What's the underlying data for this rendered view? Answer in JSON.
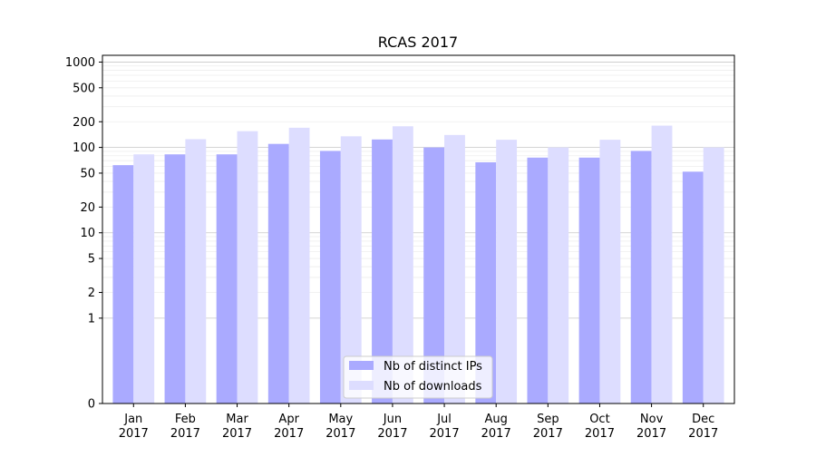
{
  "chart_data": {
    "type": "bar",
    "title": "RCAS 2017",
    "xlabel": "",
    "ylabel": "",
    "y_scale": "symlog",
    "ylim": [
      0,
      1200
    ],
    "y_ticks": [
      0,
      1,
      2,
      5,
      10,
      20,
      50,
      100,
      200,
      500,
      1000
    ],
    "y_tick_labels": [
      "0",
      "1",
      "2",
      "5",
      "10",
      "20",
      "50",
      "100",
      "200",
      "500",
      "1000"
    ],
    "y_major_grid": [
      1,
      10,
      100,
      1000
    ],
    "categories": [
      [
        "Jan",
        "2017"
      ],
      [
        "Feb",
        "2017"
      ],
      [
        "Mar",
        "2017"
      ],
      [
        "Apr",
        "2017"
      ],
      [
        "May",
        "2017"
      ],
      [
        "Jun",
        "2017"
      ],
      [
        "Jul",
        "2017"
      ],
      [
        "Aug",
        "2017"
      ],
      [
        "Sep",
        "2017"
      ],
      [
        "Oct",
        "2017"
      ],
      [
        "Nov",
        "2017"
      ],
      [
        "Dec",
        "2017"
      ]
    ],
    "series": [
      {
        "name": "Nb of distinct IPs",
        "color": "#aaaaff",
        "values": [
          62,
          83,
          83,
          110,
          91,
          124,
          100,
          67,
          76,
          76,
          91,
          52
        ]
      },
      {
        "name": "Nb of downloads",
        "color": "#ddddff",
        "values": [
          83,
          125,
          155,
          170,
          135,
          177,
          140,
          123,
          100,
          123,
          180,
          100
        ]
      }
    ],
    "grid": "y",
    "legend_position": "lower center"
  }
}
